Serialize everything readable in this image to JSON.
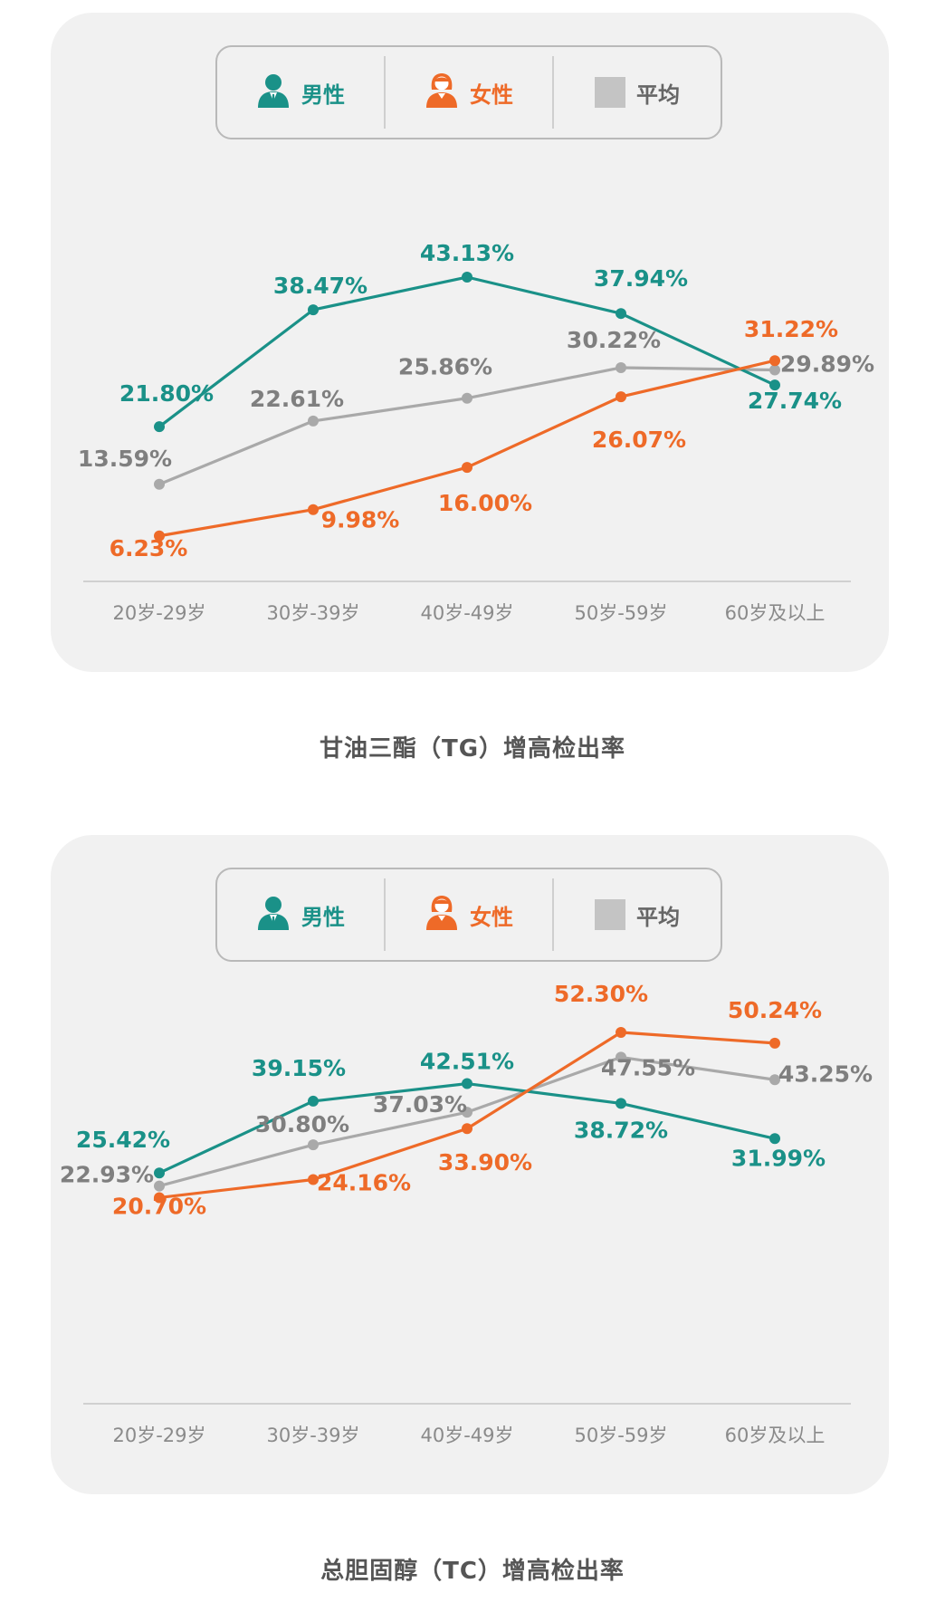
{
  "legend": {
    "male": "男性",
    "female": "女性",
    "average": "平均"
  },
  "colors": {
    "male": "#1a9188",
    "female": "#ee6a28",
    "average": "#a9a9a9",
    "card": "#f1f1f1"
  },
  "icons": [
    "male-person-icon",
    "female-person-icon",
    "gray-square-icon"
  ],
  "captions": {
    "tg": "甘油三酯（TG）增高检出率",
    "tc": "总胆固醇（TC）增高检出率"
  },
  "chart_data": [
    {
      "type": "line",
      "title": "甘油三酯（TG）增高检出率",
      "categories": [
        "20岁-29岁",
        "30岁-39岁",
        "40岁-49岁",
        "50岁-59岁",
        "60岁及以上"
      ],
      "ylim": [
        0,
        50
      ],
      "grid": false,
      "legend_position": "top-center",
      "series": [
        {
          "name": "男性",
          "key": "male",
          "values": [
            21.8,
            38.47,
            43.13,
            37.94,
            27.74
          ],
          "labels": [
            "21.80%",
            "38.47%",
            "43.13%",
            "37.94%",
            "27.74%"
          ]
        },
        {
          "name": "女性",
          "key": "female",
          "values": [
            6.23,
            9.98,
            16.0,
            26.07,
            31.22
          ],
          "labels": [
            "6.23%",
            "9.98%",
            "16.00%",
            "26.07%",
            "31.22%"
          ]
        },
        {
          "name": "平均",
          "key": "average",
          "values": [
            13.59,
            22.61,
            25.86,
            30.22,
            29.89
          ],
          "labels": [
            "13.59%",
            "22.61%",
            "25.86%",
            "30.22%",
            "29.89%"
          ]
        }
      ]
    },
    {
      "type": "line",
      "title": "总胆固醇（TC）增高检出率",
      "categories": [
        "20岁-29岁",
        "30岁-39岁",
        "40岁-49岁",
        "50岁-59岁",
        "60岁及以上"
      ],
      "ylim": [
        0,
        60
      ],
      "grid": false,
      "legend_position": "top-center",
      "series": [
        {
          "name": "男性",
          "key": "male",
          "values": [
            25.42,
            39.15,
            42.51,
            38.72,
            31.99
          ],
          "labels": [
            "25.42%",
            "39.15%",
            "42.51%",
            "38.72%",
            "31.99%"
          ]
        },
        {
          "name": "女性",
          "key": "female",
          "values": [
            20.7,
            24.16,
            33.9,
            52.3,
            50.24
          ],
          "labels": [
            "20.70%",
            "24.16%",
            "33.90%",
            "52.30%",
            "50.24%"
          ]
        },
        {
          "name": "平均",
          "key": "average",
          "values": [
            22.93,
            30.8,
            37.03,
            47.55,
            43.25
          ],
          "labels": [
            "22.93%",
            "30.80%",
            "37.03%",
            "47.55%",
            "43.25%"
          ]
        }
      ]
    }
  ]
}
